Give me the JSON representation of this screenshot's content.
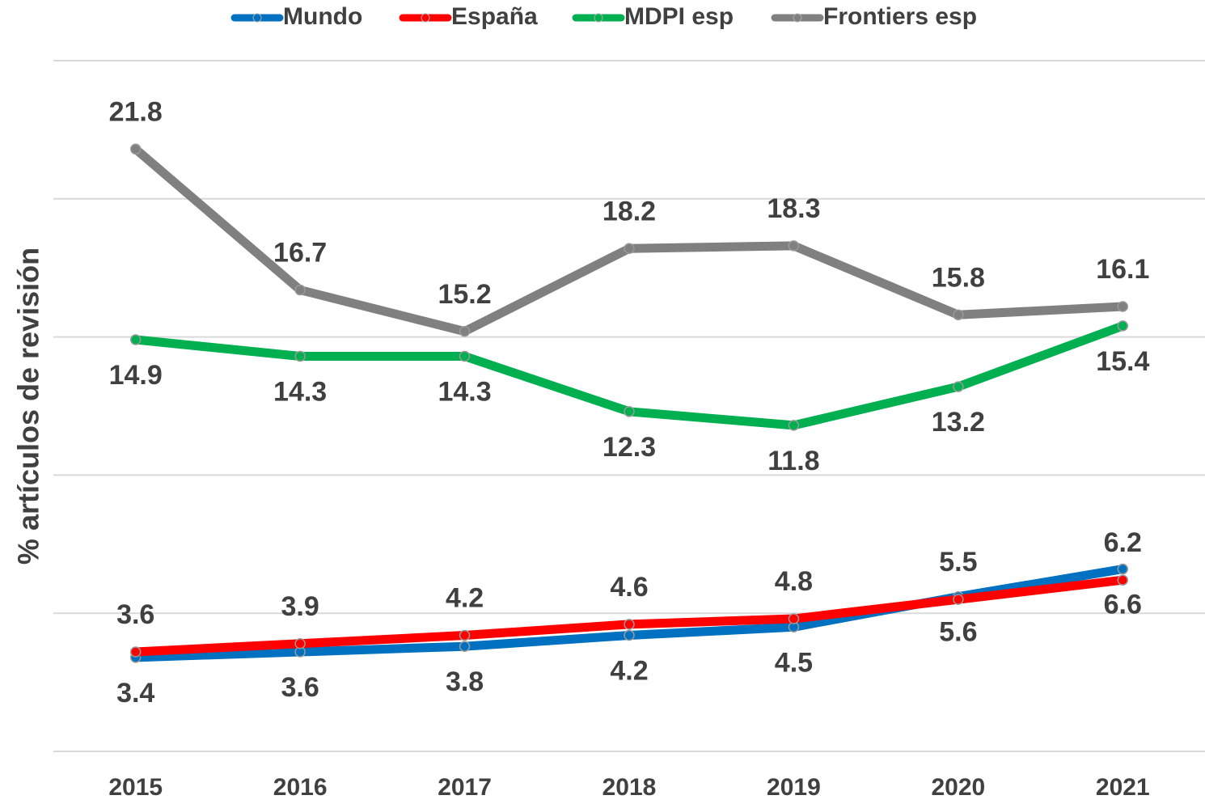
{
  "chart_data": {
    "type": "line",
    "y_label": "% artículos de revisión",
    "categories": [
      "2015",
      "2016",
      "2017",
      "2018",
      "2019",
      "2020",
      "2021"
    ],
    "series": [
      {
        "name": "Mundo",
        "color": "#0070c0",
        "values": [
          3.4,
          3.6,
          3.8,
          4.2,
          4.5,
          5.6,
          6.6
        ]
      },
      {
        "name": "España",
        "color": "#ff0000",
        "values": [
          3.6,
          3.9,
          4.2,
          4.6,
          4.8,
          5.5,
          6.2
        ]
      },
      {
        "name": "MDPI esp",
        "color": "#00b050",
        "values": [
          14.9,
          14.3,
          14.3,
          12.3,
          11.8,
          13.2,
          15.4
        ]
      },
      {
        "name": "Frontiers esp",
        "color": "#808080",
        "values": [
          21.8,
          16.7,
          15.2,
          18.2,
          18.3,
          15.8,
          16.1
        ]
      }
    ],
    "ylim": [
      0,
      25
    ],
    "yticks": [
      0,
      5,
      10,
      15,
      20,
      25
    ],
    "grid": true,
    "legend": "top"
  }
}
